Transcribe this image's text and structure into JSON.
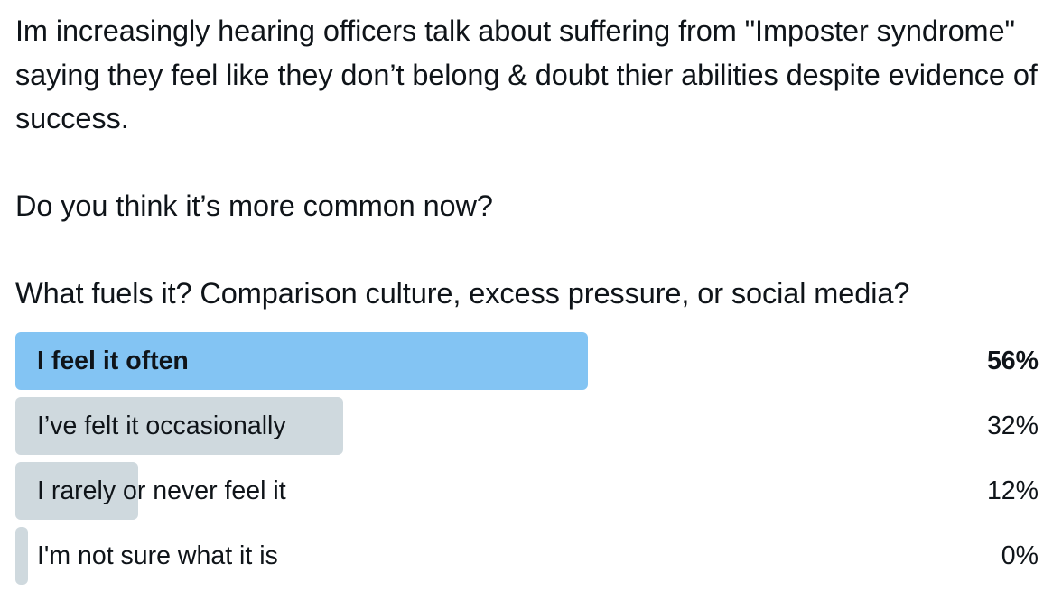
{
  "tweet": {
    "paragraphs": [
      "Im increasingly hearing officers talk about suffering from \"Imposter syndrome\" saying they feel like they don’t belong & doubt thier abilities despite evidence of success.",
      "Do you think it’s more common now?",
      "What fuels it? Comparison culture, excess pressure, or social media?"
    ]
  },
  "poll": {
    "options": [
      {
        "label": "I feel it often",
        "percent_label": "56%",
        "percent": 56,
        "winner": true
      },
      {
        "label": "I’ve felt it occasionally",
        "percent_label": "32%",
        "percent": 32,
        "winner": false
      },
      {
        "label": "I rarely or never feel it",
        "percent_label": "12%",
        "percent": 12,
        "winner": false
      },
      {
        "label": "I'm not sure what it is",
        "percent_label": "0%",
        "percent": 0,
        "winner": false
      }
    ],
    "colors": {
      "winner_bar": "#83c4f3",
      "other_bar": "#cfd9de",
      "text": "#0f1419"
    }
  }
}
